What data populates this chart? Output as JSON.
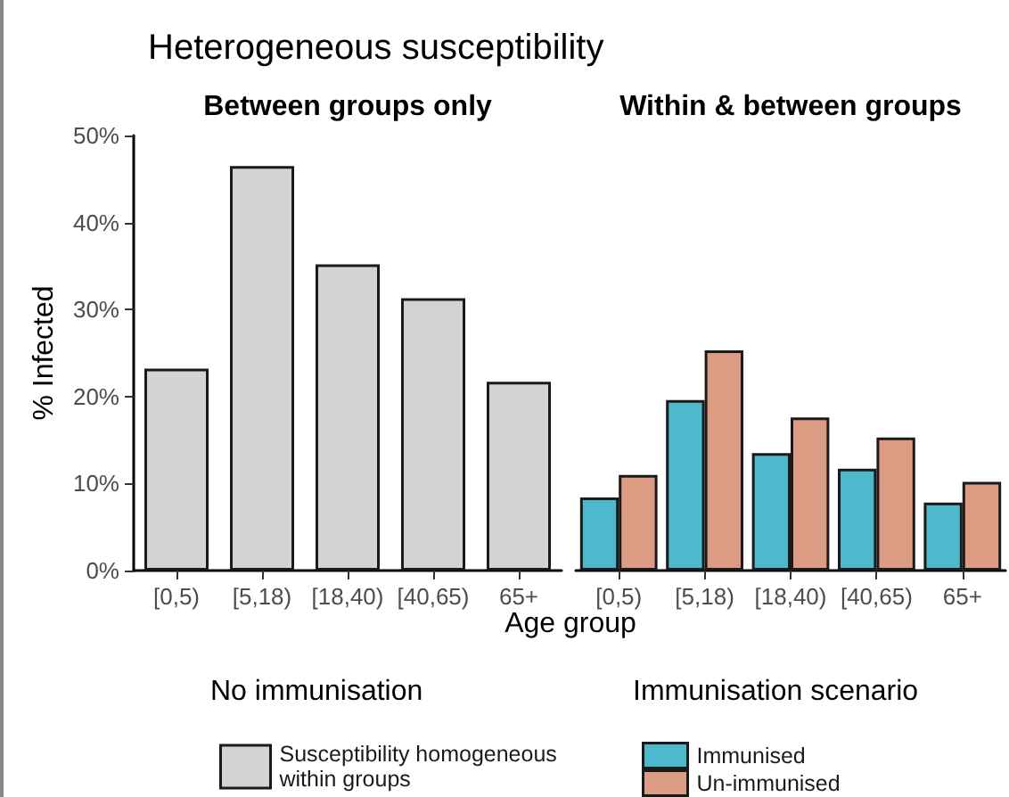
{
  "chart_data": [
    {
      "type": "bar",
      "title": "Heterogeneous susceptibility",
      "subtitle": "Between groups only",
      "xlabel": "Age group",
      "ylabel": "% Infected",
      "legend_title": "No immunisation",
      "categories": [
        "[0,5)",
        "[5,18)",
        "[18,40)",
        "[40,65)",
        "65+"
      ],
      "series": [
        {
          "name": "Susceptibility homogeneous within groups",
          "color": "#d3d3d3",
          "values": [
            23.2,
            46.5,
            35.2,
            31.3,
            21.7
          ]
        }
      ],
      "ylim": [
        0,
        50
      ],
      "yticks": [
        {
          "value": 0,
          "label": "0%"
        },
        {
          "value": 10,
          "label": "10%"
        },
        {
          "value": 20,
          "label": "20%"
        },
        {
          "value": 30,
          "label": "30%"
        },
        {
          "value": 40,
          "label": "40%"
        },
        {
          "value": 50,
          "label": "50%"
        }
      ],
      "grid": false,
      "legend": "bottom"
    },
    {
      "type": "bar",
      "subtitle": "Within & between groups",
      "legend_title": "Immunisation scenario",
      "categories": [
        "[0,5)",
        "[5,18)",
        "[18,40)",
        "[40,65)",
        "65+"
      ],
      "series": [
        {
          "name": "Immunised",
          "color": "#4cb9cc",
          "values": [
            8.4,
            19.6,
            13.5,
            11.7,
            7.8
          ]
        },
        {
          "name": "Un-immunised",
          "color": "#dc9c84",
          "values": [
            11.0,
            25.3,
            17.6,
            15.3,
            10.2
          ]
        }
      ],
      "ylim": [
        0,
        50
      ],
      "tick_labels": "x",
      "grid": false,
      "legend": "bottom"
    }
  ]
}
